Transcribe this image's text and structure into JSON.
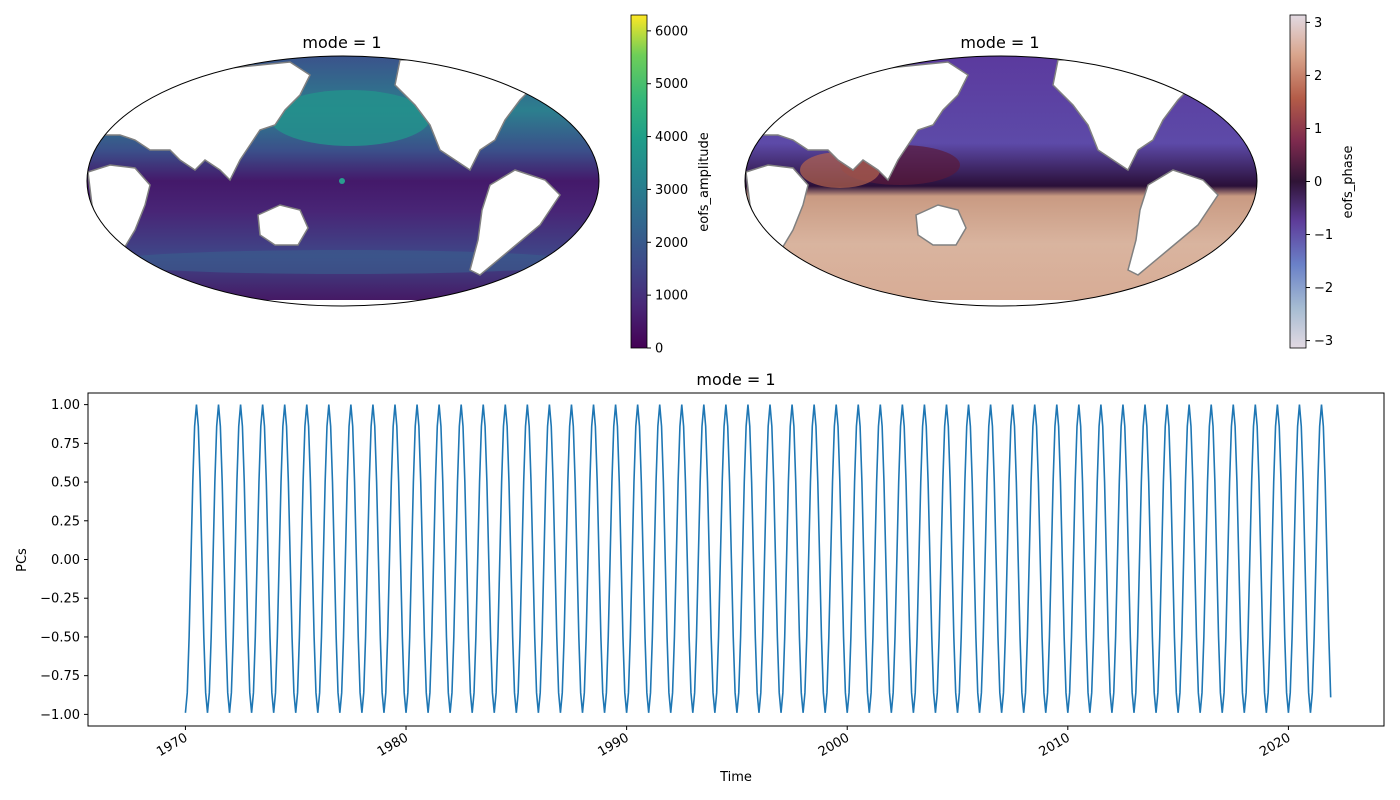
{
  "chart_data": [
    {
      "type": "heatmap",
      "projection": "Robinson (global, map)",
      "title": "mode = 1",
      "colormap": "viridis",
      "colorbar": {
        "label": "eofs_amplitude",
        "vmin": 0,
        "vmax": 6300,
        "ticks": [
          "0",
          "1000",
          "2000",
          "3000",
          "4000",
          "5000",
          "6000"
        ]
      },
      "coastlines_color": "#7f7f7f"
    },
    {
      "type": "heatmap",
      "projection": "Robinson (global, map)",
      "title": "mode = 1",
      "colormap": "twilight",
      "colorbar": {
        "label": "eofs_phase",
        "vmin": -3.14,
        "vmax": 3.14,
        "ticks": [
          "−3",
          "−2",
          "−1",
          "0",
          "1",
          "2",
          "3"
        ]
      },
      "coastlines_color": "#7f7f7f"
    },
    {
      "type": "line",
      "title": "mode = 1",
      "xlabel": "Time",
      "ylabel": "PCs",
      "xlim": [
        "1965-08",
        "2024-05"
      ],
      "ylim": [
        -1.075,
        1.075
      ],
      "x_ticks": [
        "1970",
        "1980",
        "1990",
        "2000",
        "2010",
        "2020"
      ],
      "y_ticks": [
        "−1.00",
        "−0.75",
        "−0.50",
        "−0.25",
        "0.00",
        "0.25",
        "0.50",
        "0.75",
        "1.00"
      ],
      "grid": false,
      "series": [
        {
          "color": "#1f77b4",
          "x_start": "1970-01",
          "x_end": "2021-12",
          "frequency": "monthly",
          "period_years": 1.0,
          "values_first_12": [
            -0.99,
            -0.86,
            -0.5,
            0.0,
            0.5,
            0.86,
            1.0,
            0.86,
            0.5,
            0.0,
            -0.5,
            -0.86
          ],
          "min": -1.0,
          "max": 1.0,
          "final_value": -0.89
        }
      ]
    }
  ]
}
